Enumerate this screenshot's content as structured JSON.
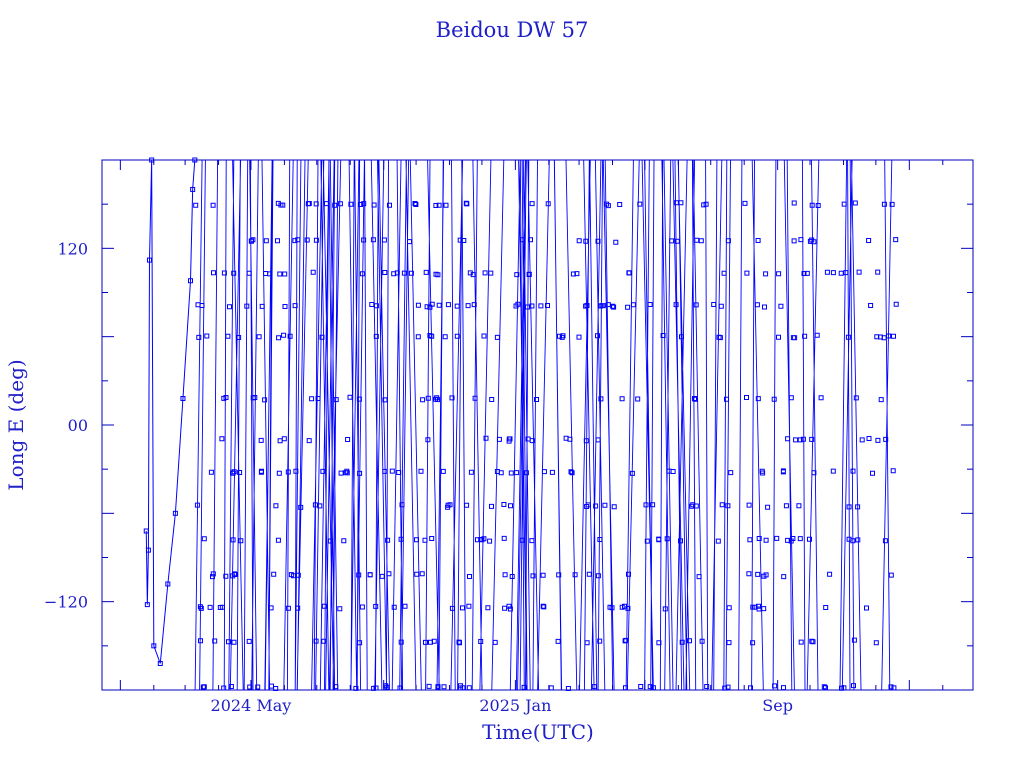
{
  "chart_data": {
    "type": "line",
    "title": "Beidou DW 57",
    "xlabel": "Time(UTC)",
    "ylabel": "Long E (deg)",
    "x_range": [
      "2023-12-15",
      "2026-03-01"
    ],
    "ylim": [
      -180,
      180
    ],
    "y_ticks": [
      {
        "value": 120,
        "label": "120"
      },
      {
        "value": 0,
        "label": "00"
      },
      {
        "value": -120,
        "label": "−120"
      }
    ],
    "x_ticks": [
      {
        "date": "2024-05-01",
        "label": "2024 May"
      },
      {
        "date": "2025-01-01",
        "label": "2025 Jan"
      },
      {
        "date": "2025-09-01",
        "label": "Sep"
      }
    ],
    "grid": false,
    "marker": "square",
    "color": "#0000ff",
    "series": [
      {
        "points": [
          [
            "2024-01-25",
            -72
          ],
          [
            "2024-01-26",
            -122
          ],
          [
            "2024-01-27",
            -85
          ],
          [
            "2024-01-28",
            112
          ],
          [
            "2024-01-30",
            180
          ],
          [
            "2024-02-01",
            -150
          ],
          [
            "2024-02-07",
            -162
          ],
          [
            "2024-02-14",
            -108
          ],
          [
            "2024-02-21",
            -60
          ],
          [
            "2024-02-28",
            18
          ],
          [
            "2024-03-06",
            98
          ],
          [
            "2024-03-08",
            160
          ],
          [
            "2024-03-10",
            180
          ]
        ]
      }
    ]
  }
}
